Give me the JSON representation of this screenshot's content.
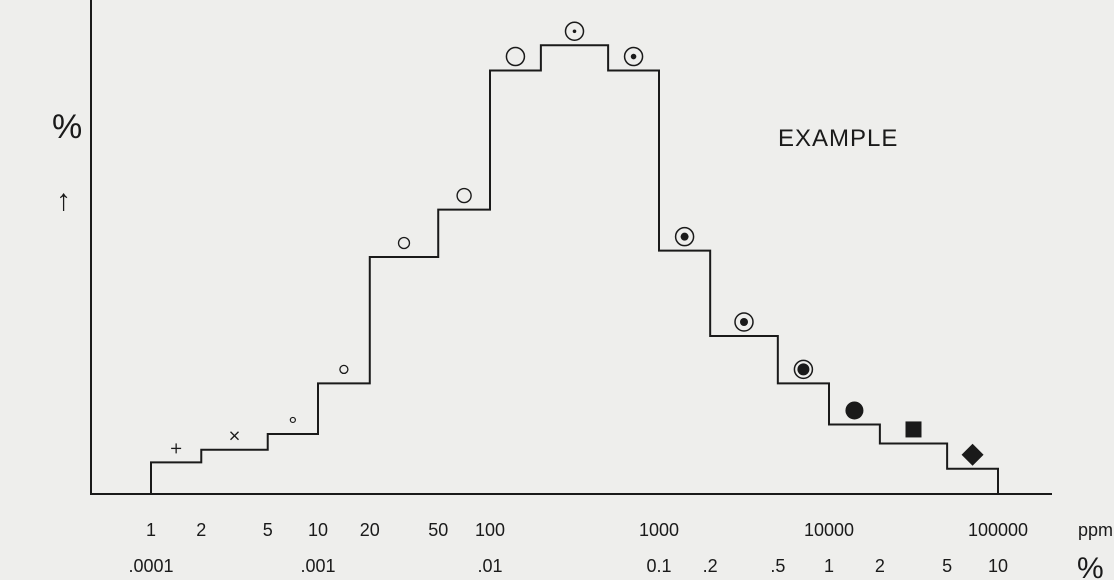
{
  "chart_data": {
    "type": "area",
    "title": "",
    "ylabel": "%",
    "ylabel_arrow": "↑",
    "annotation": "EXAMPLE",
    "x_unit_ppm": "ppm",
    "x_unit_percent": "%",
    "x_scale": "log",
    "grid": false,
    "x_ticks_ppm": [
      {
        "label": "1",
        "value": 1
      },
      {
        "label": "2",
        "value": 2
      },
      {
        "label": "5",
        "value": 5
      },
      {
        "label": "10",
        "value": 10
      },
      {
        "label": "20",
        "value": 20
      },
      {
        "label": "50",
        "value": 50
      },
      {
        "label": "100",
        "value": 100
      },
      {
        "label": "1000",
        "value": 1000
      },
      {
        "label": "10000",
        "value": 10000
      },
      {
        "label": "100000",
        "value": 100000
      }
    ],
    "x_ticks_percent": [
      {
        "label": ".0001",
        "value": 1
      },
      {
        "label": ".001",
        "value": 10
      },
      {
        "label": ".01",
        "value": 100
      },
      {
        "label": "0.1",
        "value": 1000
      },
      {
        "label": ".2",
        "value": 2000
      },
      {
        "label": ".5",
        "value": 5000
      },
      {
        "label": "1",
        "value": 10000
      },
      {
        "label": "2",
        "value": 20000
      },
      {
        "label": "5",
        "value": 50000
      },
      {
        "label": "10",
        "value": 100000
      }
    ],
    "steps": [
      {
        "from": 1,
        "to": 2,
        "height": 1.0,
        "symbol": "plus"
      },
      {
        "from": 2,
        "to": 5,
        "height": 1.4,
        "symbol": "cross"
      },
      {
        "from": 5,
        "to": 10,
        "height": 1.9,
        "symbol": "tiny-circle"
      },
      {
        "from": 10,
        "to": 20,
        "height": 3.5,
        "symbol": "small-circle"
      },
      {
        "from": 20,
        "to": 50,
        "height": 7.5,
        "symbol": "medium-circle"
      },
      {
        "from": 50,
        "to": 100,
        "height": 9.0,
        "symbol": "circle"
      },
      {
        "from": 100,
        "to": 200,
        "height": 13.4,
        "symbol": "large-circle"
      },
      {
        "from": 200,
        "to": 500,
        "height": 14.2,
        "symbol": "dotted-circle"
      },
      {
        "from": 500,
        "to": 1000,
        "height": 13.4,
        "symbol": "dotted-circle-bold"
      },
      {
        "from": 1000,
        "to": 2000,
        "height": 7.7,
        "symbol": "ringed-dot"
      },
      {
        "from": 2000,
        "to": 5000,
        "height": 5.0,
        "symbol": "ringed-dot"
      },
      {
        "from": 5000,
        "to": 10000,
        "height": 3.5,
        "symbol": "ringed-filled"
      },
      {
        "from": 10000,
        "to": 20000,
        "height": 2.2,
        "symbol": "filled-circle"
      },
      {
        "from": 20000,
        "to": 50000,
        "height": 1.6,
        "symbol": "filled-square"
      },
      {
        "from": 50000,
        "to": 100000,
        "height": 0.8,
        "symbol": "filled-diamond"
      }
    ],
    "ylim": [
      0,
      15
    ]
  }
}
